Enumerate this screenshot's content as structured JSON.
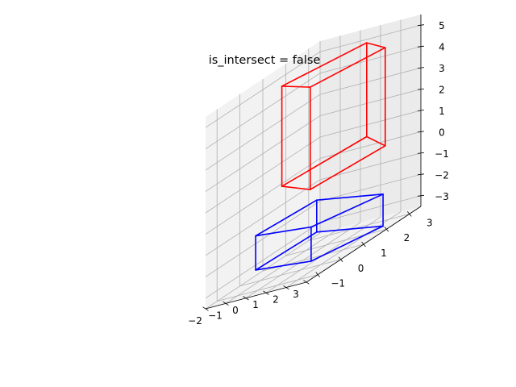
{
  "chart_data": {
    "type": "line",
    "projection": "3d",
    "title": "is_intersect = false",
    "xlabel": "",
    "ylabel": "",
    "zlabel": "",
    "xlim": [
      -2,
      3
    ],
    "ylim": [
      -1.5,
      3.5
    ],
    "zlim": [
      -3.5,
      5.5
    ],
    "x_ticks": [
      -2,
      -1,
      0,
      1,
      2,
      3
    ],
    "y_ticks": [
      -1,
      0,
      1,
      2,
      3
    ],
    "z_ticks": [
      -3,
      -2,
      -1,
      0,
      1,
      2,
      3,
      4,
      5
    ],
    "x_tick_labels": [
      "−2",
      "−1",
      "0",
      "1",
      "2",
      "3"
    ],
    "y_tick_labels": [
      "−1",
      "0",
      "1",
      "2",
      "3"
    ],
    "z_tick_labels": [
      "−3",
      "−2",
      "−1",
      "0",
      "1",
      "2",
      "3",
      "4",
      "5"
    ],
    "grid": true,
    "series": [
      {
        "color": "#ff0000",
        "shape": "parallelepiped",
        "vertices": [
          [
            -0.6,
            0.6,
            5.1
          ],
          [
            1.6,
            -0.1,
            5.0
          ],
          [
            1.8,
            3.0,
            4.6
          ],
          [
            0.2,
            3.6,
            4.8
          ],
          [
            -0.6,
            0.6,
            0.4
          ],
          [
            1.6,
            -0.1,
            0.2
          ],
          [
            1.8,
            3.0,
            0.0
          ],
          [
            0.2,
            3.6,
            0.4
          ]
        ],
        "edges": [
          [
            0,
            1
          ],
          [
            1,
            2
          ],
          [
            2,
            3
          ],
          [
            3,
            0
          ],
          [
            4,
            5
          ],
          [
            5,
            6
          ],
          [
            6,
            7
          ],
          [
            7,
            4
          ],
          [
            0,
            4
          ],
          [
            1,
            5
          ],
          [
            2,
            6
          ],
          [
            3,
            7
          ]
        ]
      },
      {
        "color": "#0000ff",
        "shape": "parallelepiped",
        "vertices": [
          [
            -1.9,
            0.6,
            -1.6
          ],
          [
            2.1,
            -0.5,
            -1.4
          ],
          [
            2.6,
            2.2,
            -1.9
          ],
          [
            -1.6,
            3.0,
            -1.7
          ],
          [
            -1.9,
            0.6,
            -3.2
          ],
          [
            2.1,
            -0.5,
            -3.0
          ],
          [
            2.6,
            2.2,
            -3.4
          ],
          [
            -1.6,
            3.0,
            -3.2
          ]
        ],
        "edges": [
          [
            0,
            1
          ],
          [
            1,
            2
          ],
          [
            2,
            3
          ],
          [
            3,
            0
          ],
          [
            4,
            5
          ],
          [
            5,
            6
          ],
          [
            6,
            7
          ],
          [
            7,
            4
          ],
          [
            0,
            4
          ],
          [
            1,
            5
          ],
          [
            2,
            6
          ],
          [
            3,
            7
          ]
        ]
      }
    ]
  }
}
